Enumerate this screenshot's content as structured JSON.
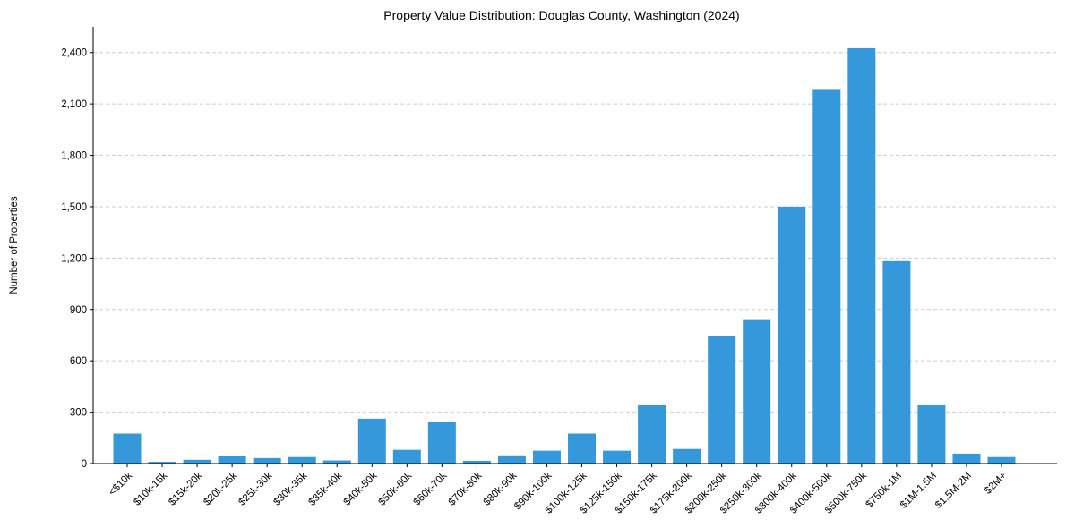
{
  "chart_data": {
    "type": "bar",
    "title": "Property Value Distribution: Douglas County, Washington (2024)",
    "xlabel": "",
    "ylabel": "Number of Properties",
    "categories": [
      "<$10k",
      "$10k-15k",
      "$15k-20k",
      "$20k-25k",
      "$25k-30k",
      "$30k-35k",
      "$35k-40k",
      "$40k-50k",
      "$50k-60k",
      "$60k-70k",
      "$70k-80k",
      "$80k-90k",
      "$90k-100k",
      "$100k-125k",
      "$125k-150k",
      "$150k-175k",
      "$175k-200k",
      "$200k-250k",
      "$250k-300k",
      "$300k-400k",
      "$400k-500k",
      "$500k-750k",
      "$750k-1M",
      "$1M-1.5M",
      "$1.5M-2M",
      "$2M+"
    ],
    "values": [
      175,
      10,
      22,
      42,
      32,
      38,
      18,
      262,
      80,
      242,
      16,
      48,
      75,
      175,
      75,
      342,
      85,
      742,
      838,
      1500,
      2182,
      2425,
      1182,
      345,
      58,
      38
    ],
    "ylim": [
      0,
      2550
    ],
    "yticks": [
      0,
      300,
      600,
      900,
      1200,
      1500,
      1800,
      2100,
      2400
    ],
    "ytick_labels": [
      "0",
      "300",
      "600",
      "900",
      "1,200",
      "1,500",
      "1,800",
      "2,100",
      "2,400"
    ],
    "grid": "horizontal dashed",
    "bar_color": "#3498db"
  }
}
